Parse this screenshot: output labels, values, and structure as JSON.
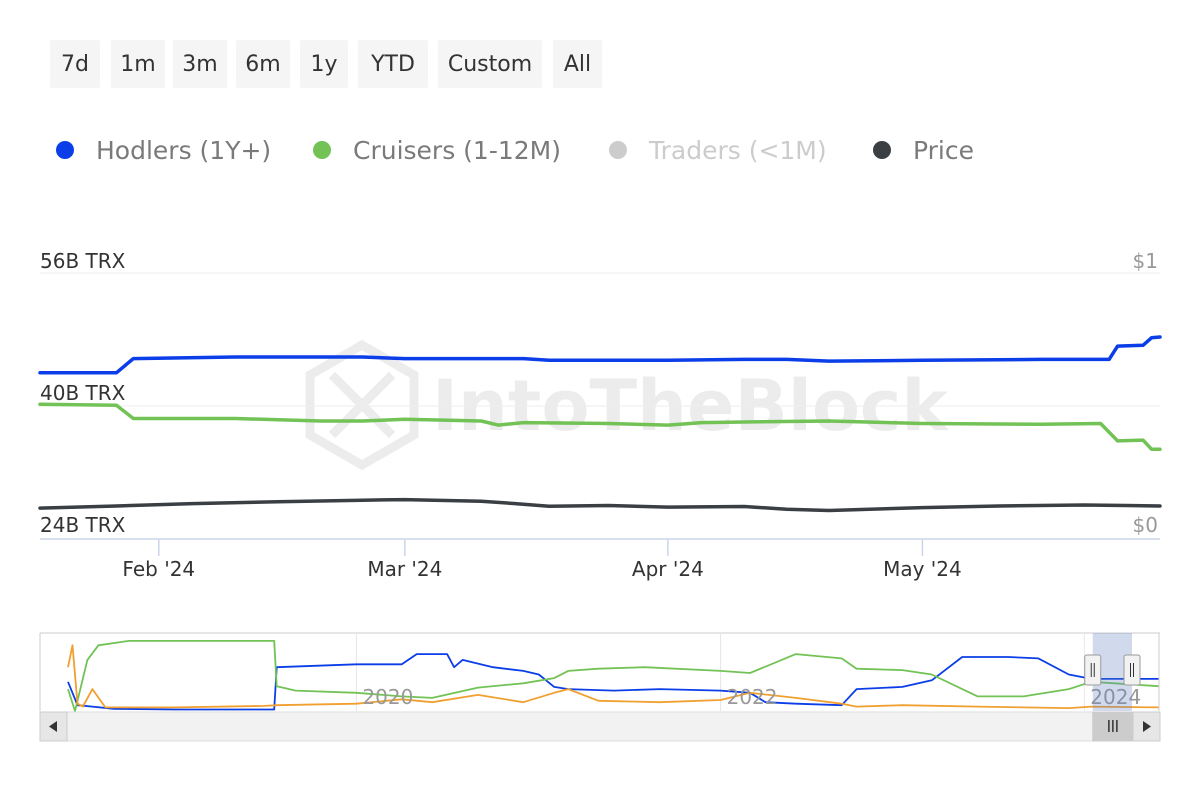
{
  "range_selector": {
    "buttons": [
      {
        "id": "7d",
        "label": "7d"
      },
      {
        "id": "1m",
        "label": "1m"
      },
      {
        "id": "3m",
        "label": "3m"
      },
      {
        "id": "6m",
        "label": "6m"
      },
      {
        "id": "1y",
        "label": "1y"
      },
      {
        "id": "ytd",
        "label": "YTD"
      },
      {
        "id": "custom",
        "label": "Custom"
      },
      {
        "id": "all",
        "label": "All"
      }
    ]
  },
  "legend": {
    "items": [
      {
        "id": "hodlers",
        "label": "Hodlers (1Y+)",
        "color": "#0b3ee8",
        "visible": true
      },
      {
        "id": "cruisers",
        "label": "Cruisers (1-12M)",
        "color": "#72c256",
        "visible": true
      },
      {
        "id": "traders",
        "label": "Traders (<1M)",
        "color": "#cccccc",
        "visible": false
      },
      {
        "id": "price",
        "label": "Price",
        "color": "#3a3f44",
        "visible": true
      }
    ]
  },
  "watermark": "IntoTheBlock",
  "chart_data": {
    "type": "line",
    "title": "",
    "grid": true,
    "x_ticks": [
      "Feb '24",
      "Mar '24",
      "Apr '24",
      "May '24"
    ],
    "y_left": {
      "ticks": [
        "56B TRX",
        "40B TRX",
        "24B TRX"
      ],
      "range": [
        24,
        56
      ],
      "unit": "B TRX"
    },
    "y_right": {
      "ticks": [
        "$1",
        "$0"
      ],
      "range": [
        0,
        1
      ],
      "unit": "USD"
    },
    "series": [
      {
        "name": "Hodlers (1Y+)",
        "color": "#0b3ee8",
        "axis": "left",
        "points": [
          [
            "2024-01-18",
            44.0
          ],
          [
            "2024-01-27",
            44.0
          ],
          [
            "2024-01-29",
            45.7
          ],
          [
            "2024-02-10",
            45.9
          ],
          [
            "2024-02-25",
            45.9
          ],
          [
            "2024-03-01",
            45.7
          ],
          [
            "2024-03-15",
            45.7
          ],
          [
            "2024-03-18",
            45.5
          ],
          [
            "2024-04-01",
            45.5
          ],
          [
            "2024-04-10",
            45.6
          ],
          [
            "2024-04-15",
            45.6
          ],
          [
            "2024-04-20",
            45.4
          ],
          [
            "2024-05-01",
            45.5
          ],
          [
            "2024-05-15",
            45.6
          ],
          [
            "2024-05-23",
            45.6
          ],
          [
            "2024-05-24",
            47.2
          ],
          [
            "2024-05-27",
            47.3
          ],
          [
            "2024-05-28",
            48.2
          ],
          [
            "2024-05-29",
            48.3
          ]
        ]
      },
      {
        "name": "Cruisers (1-12M)",
        "color": "#72c256",
        "axis": "left",
        "points": [
          [
            "2024-01-18",
            40.2
          ],
          [
            "2024-01-27",
            40.1
          ],
          [
            "2024-01-29",
            38.5
          ],
          [
            "2024-02-10",
            38.5
          ],
          [
            "2024-02-20",
            38.2
          ],
          [
            "2024-02-25",
            38.2
          ],
          [
            "2024-03-01",
            38.4
          ],
          [
            "2024-03-10",
            38.2
          ],
          [
            "2024-03-12",
            37.7
          ],
          [
            "2024-03-15",
            38.0
          ],
          [
            "2024-03-25",
            37.9
          ],
          [
            "2024-04-01",
            37.7
          ],
          [
            "2024-04-05",
            38.0
          ],
          [
            "2024-04-12",
            38.1
          ],
          [
            "2024-04-20",
            38.2
          ],
          [
            "2024-05-01",
            37.9
          ],
          [
            "2024-05-15",
            37.8
          ],
          [
            "2024-05-22",
            37.9
          ],
          [
            "2024-05-24",
            35.8
          ],
          [
            "2024-05-27",
            35.9
          ],
          [
            "2024-05-28",
            34.8
          ],
          [
            "2024-05-29",
            34.8
          ]
        ]
      },
      {
        "name": "Price",
        "color": "#3a3f44",
        "axis": "right",
        "points": [
          [
            "2024-01-18",
            0.116
          ],
          [
            "2024-01-27",
            0.124
          ],
          [
            "2024-02-05",
            0.133
          ],
          [
            "2024-02-15",
            0.14
          ],
          [
            "2024-02-25",
            0.146
          ],
          [
            "2024-03-01",
            0.148
          ],
          [
            "2024-03-10",
            0.142
          ],
          [
            "2024-03-14",
            0.133
          ],
          [
            "2024-03-18",
            0.123
          ],
          [
            "2024-03-25",
            0.126
          ],
          [
            "2024-04-01",
            0.12
          ],
          [
            "2024-04-10",
            0.122
          ],
          [
            "2024-04-15",
            0.112
          ],
          [
            "2024-04-20",
            0.107
          ],
          [
            "2024-05-01",
            0.118
          ],
          [
            "2024-05-10",
            0.124
          ],
          [
            "2024-05-20",
            0.128
          ],
          [
            "2024-05-25",
            0.126
          ],
          [
            "2024-05-29",
            0.124
          ]
        ]
      }
    ]
  },
  "navigator": {
    "x_labels": [
      "2020",
      "2022",
      "2024"
    ],
    "x_range": [
      "2018-06-01",
      "2024-06-01"
    ],
    "y_range": [
      0,
      100
    ],
    "selected_range": [
      "2024-01-18",
      "2024-05-29"
    ],
    "series": [
      {
        "name": "Hodlers (1Y+)",
        "color": "#0b3ee8",
        "points": [
          [
            "2018-06-01",
            40
          ],
          [
            "2018-06-20",
            8
          ],
          [
            "2018-07-20",
            6
          ],
          [
            "2018-09-01",
            3
          ],
          [
            "2019-01-01",
            2
          ],
          [
            "2019-07-01",
            2
          ],
          [
            "2019-07-20",
            2
          ],
          [
            "2019-07-25",
            60
          ],
          [
            "2020-01-01",
            64
          ],
          [
            "2020-04-01",
            64
          ],
          [
            "2020-05-01",
            78
          ],
          [
            "2020-07-01",
            78
          ],
          [
            "2020-07-15",
            60
          ],
          [
            "2020-08-01",
            70
          ],
          [
            "2020-10-01",
            60
          ],
          [
            "2020-12-01",
            55
          ],
          [
            "2021-01-01",
            50
          ],
          [
            "2021-02-01",
            33
          ],
          [
            "2021-03-01",
            30
          ],
          [
            "2021-06-01",
            28
          ],
          [
            "2021-09-01",
            30
          ],
          [
            "2022-01-01",
            28
          ],
          [
            "2022-03-01",
            25
          ],
          [
            "2022-04-01",
            12
          ],
          [
            "2022-06-01",
            10
          ],
          [
            "2022-09-01",
            8
          ],
          [
            "2022-10-01",
            30
          ],
          [
            "2023-01-01",
            33
          ],
          [
            "2023-03-01",
            42
          ],
          [
            "2023-05-01",
            74
          ],
          [
            "2023-08-01",
            74
          ],
          [
            "2023-10-01",
            72
          ],
          [
            "2023-12-01",
            50
          ],
          [
            "2024-01-15",
            44
          ],
          [
            "2024-05-29",
            44
          ]
        ]
      },
      {
        "name": "Cruisers (1-12M)",
        "color": "#72c256",
        "points": [
          [
            "2018-06-01",
            30
          ],
          [
            "2018-06-15",
            0
          ],
          [
            "2018-07-10",
            70
          ],
          [
            "2018-08-01",
            90
          ],
          [
            "2018-10-01",
            96
          ],
          [
            "2019-01-01",
            96
          ],
          [
            "2019-07-20",
            96
          ],
          [
            "2019-07-25",
            34
          ],
          [
            "2019-09-01",
            28
          ],
          [
            "2020-01-01",
            25
          ],
          [
            "2020-04-01",
            20
          ],
          [
            "2020-06-01",
            18
          ],
          [
            "2020-09-01",
            32
          ],
          [
            "2020-12-01",
            38
          ],
          [
            "2021-02-01",
            45
          ],
          [
            "2021-03-01",
            55
          ],
          [
            "2021-05-01",
            58
          ],
          [
            "2021-08-01",
            60
          ],
          [
            "2022-01-01",
            55
          ],
          [
            "2022-03-01",
            52
          ],
          [
            "2022-06-01",
            78
          ],
          [
            "2022-09-01",
            72
          ],
          [
            "2022-10-01",
            58
          ],
          [
            "2023-01-01",
            56
          ],
          [
            "2023-03-01",
            50
          ],
          [
            "2023-05-01",
            30
          ],
          [
            "2023-06-01",
            20
          ],
          [
            "2023-09-01",
            20
          ],
          [
            "2023-12-01",
            30
          ],
          [
            "2024-01-15",
            40
          ],
          [
            "2024-05-29",
            34
          ]
        ]
      },
      {
        "name": "Traders (<1M)",
        "color": "#f0a030",
        "points": [
          [
            "2018-06-01",
            60
          ],
          [
            "2018-06-10",
            90
          ],
          [
            "2018-06-20",
            10
          ],
          [
            "2018-07-01",
            6
          ],
          [
            "2018-07-20",
            30
          ],
          [
            "2018-08-15",
            5
          ],
          [
            "2019-01-01",
            5
          ],
          [
            "2019-07-01",
            7
          ],
          [
            "2019-07-25",
            8
          ],
          [
            "2020-01-01",
            10
          ],
          [
            "2020-04-01",
            16
          ],
          [
            "2020-06-01",
            12
          ],
          [
            "2020-09-01",
            22
          ],
          [
            "2020-12-01",
            12
          ],
          [
            "2021-02-01",
            25
          ],
          [
            "2021-03-01",
            30
          ],
          [
            "2021-05-01",
            14
          ],
          [
            "2021-09-01",
            12
          ],
          [
            "2022-01-01",
            15
          ],
          [
            "2022-03-01",
            25
          ],
          [
            "2022-06-01",
            18
          ],
          [
            "2022-09-01",
            10
          ],
          [
            "2022-10-01",
            6
          ],
          [
            "2023-01-01",
            8
          ],
          [
            "2023-06-01",
            6
          ],
          [
            "2023-12-01",
            4
          ],
          [
            "2024-01-15",
            6
          ],
          [
            "2024-05-29",
            5
          ]
        ]
      }
    ]
  }
}
